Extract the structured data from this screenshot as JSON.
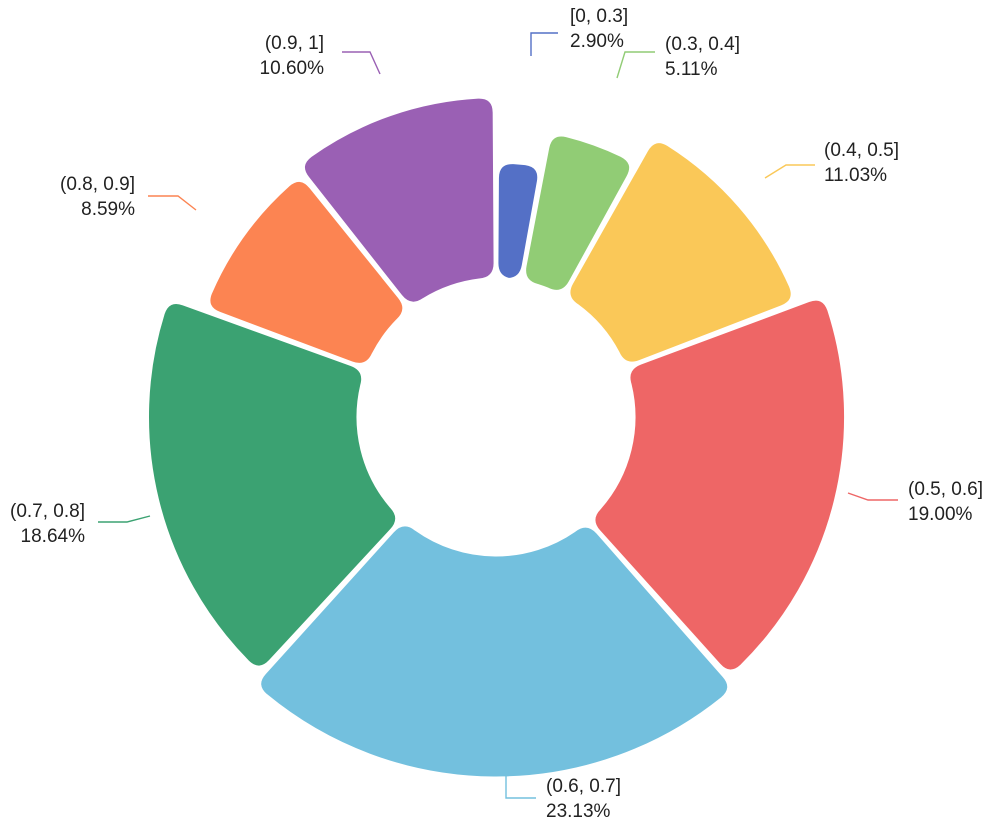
{
  "chart_data": {
    "type": "pie",
    "variant": "donut",
    "slices": [
      {
        "name": "[0, 0.3]",
        "value": 2.9,
        "label": "2.90%",
        "color": "#5470c6"
      },
      {
        "name": "(0.3, 0.4]",
        "value": 5.11,
        "label": "5.11%",
        "color": "#91cc75"
      },
      {
        "name": "(0.4, 0.5]",
        "value": 11.03,
        "label": "11.03%",
        "color": "#fac858"
      },
      {
        "name": "(0.5, 0.6]",
        "value": 19.0,
        "label": "19.00%",
        "color": "#ee6666"
      },
      {
        "name": "(0.6, 0.7]",
        "value": 23.13,
        "label": "23.13%",
        "color": "#73c0de"
      },
      {
        "name": "(0.7, 0.8]",
        "value": 18.64,
        "label": "18.64%",
        "color": "#3ba272"
      },
      {
        "name": "(0.8, 0.9]",
        "value": 8.59,
        "label": "8.59%",
        "color": "#fc8452"
      },
      {
        "name": "(0.9, 1]",
        "value": 10.6,
        "label": "10.60%",
        "color": "#9a60b4"
      }
    ],
    "legend": "none",
    "labels": "outside-with-leader-lines"
  }
}
